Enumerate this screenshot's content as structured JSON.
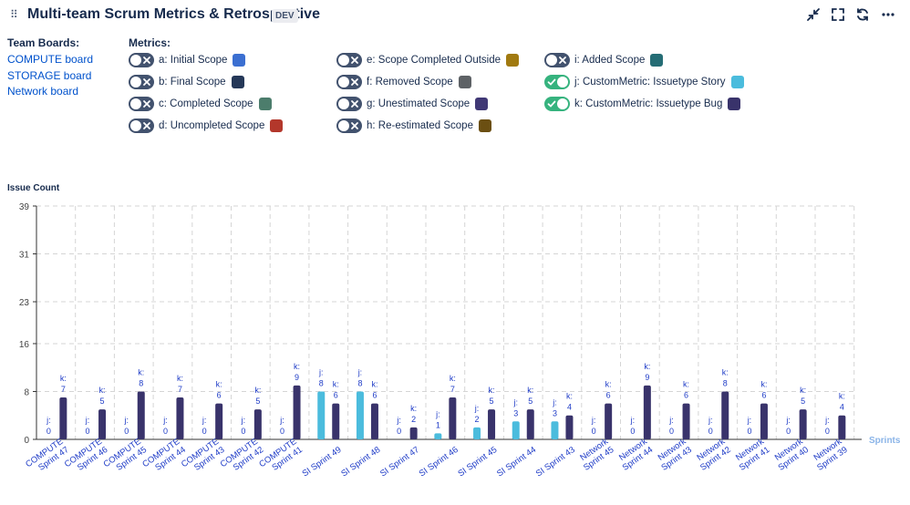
{
  "header": {
    "title": "Multi-team Scrum Metrics & Retrospective",
    "env_badge": "DEV",
    "drag_glyph": "⠿"
  },
  "boards": {
    "heading": "Team Boards:",
    "items": [
      "COMPUTE board",
      "STORAGE board",
      "Network board"
    ]
  },
  "metrics": {
    "heading": "Metrics:",
    "items": [
      {
        "label": "a: Initial Scope",
        "color": "#3b6fd1",
        "enabled": false
      },
      {
        "label": "b: Final Scope",
        "color": "#253858",
        "enabled": false
      },
      {
        "label": "c: Completed Scope",
        "color": "#4c7d6c",
        "enabled": false
      },
      {
        "label": "d: Uncompleted Scope",
        "color": "#b3372b",
        "enabled": false
      },
      {
        "label": "e: Scope Completed Outside",
        "color": "#a17a10",
        "enabled": false
      },
      {
        "label": "f: Removed Scope",
        "color": "#5e6266",
        "enabled": false
      },
      {
        "label": "g: Unestimated Scope",
        "color": "#403875",
        "enabled": false
      },
      {
        "label": "h: Re-estimated Scope",
        "color": "#6b4f12",
        "enabled": false
      },
      {
        "label": "i: Added Scope",
        "color": "#256d75",
        "enabled": false
      },
      {
        "label": "j: CustomMetric: Issuetype Story",
        "color": "#4bbcdd",
        "enabled": true
      },
      {
        "label": "k: CustomMetric: Issuetype Bug",
        "color": "#39336b",
        "enabled": true
      }
    ]
  },
  "chart_data": {
    "type": "bar",
    "title": "Issue Count",
    "xlabel": "Sprints",
    "ylabel": "Issue Count",
    "ylim": [
      0,
      39
    ],
    "yticks": [
      0,
      8,
      16,
      23,
      31,
      39
    ],
    "grid": true,
    "categories": [
      [
        "COMPUTE",
        "Sprint 47"
      ],
      [
        "COMPUTE",
        "Sprint 46"
      ],
      [
        "COMPUTE",
        "Sprint 45"
      ],
      [
        "COMPUTE",
        "Sprint 44"
      ],
      [
        "COMPUTE",
        "Sprint 43"
      ],
      [
        "COMPUTE",
        "Sprint 42"
      ],
      [
        "COMPUTE",
        "Sprint 41"
      ],
      [
        "SI Sprint 49"
      ],
      [
        "SI Sprint 48"
      ],
      [
        "SI Sprint 47"
      ],
      [
        "SI Sprint 46"
      ],
      [
        "SI Sprint 45"
      ],
      [
        "SI Sprint 44"
      ],
      [
        "SI Sprint 43"
      ],
      [
        "Network",
        "Sprint 45"
      ],
      [
        "Network",
        "Sprint 44"
      ],
      [
        "Network",
        "Sprint 43"
      ],
      [
        "Network",
        "Sprint 42"
      ],
      [
        "Network",
        "Sprint 41"
      ],
      [
        "Network",
        "Sprint 40"
      ],
      [
        "Network",
        "Sprint 39"
      ]
    ],
    "series": [
      {
        "name": "j",
        "color": "#4bbcdd",
        "values": [
          0,
          0,
          0,
          0,
          0,
          0,
          0,
          8,
          8,
          0,
          1,
          2,
          3,
          3,
          0,
          0,
          0,
          0,
          0,
          0,
          0
        ]
      },
      {
        "name": "k",
        "color": "#39336b",
        "values": [
          7,
          5,
          8,
          7,
          6,
          5,
          9,
          6,
          6,
          2,
          7,
          5,
          5,
          4,
          6,
          9,
          6,
          8,
          6,
          5,
          4
        ]
      }
    ]
  },
  "colors": {
    "label": "#1f3cc7",
    "axis": "#333333",
    "grid": "#d5d5d5",
    "xlabel": "#8ab4e8"
  }
}
